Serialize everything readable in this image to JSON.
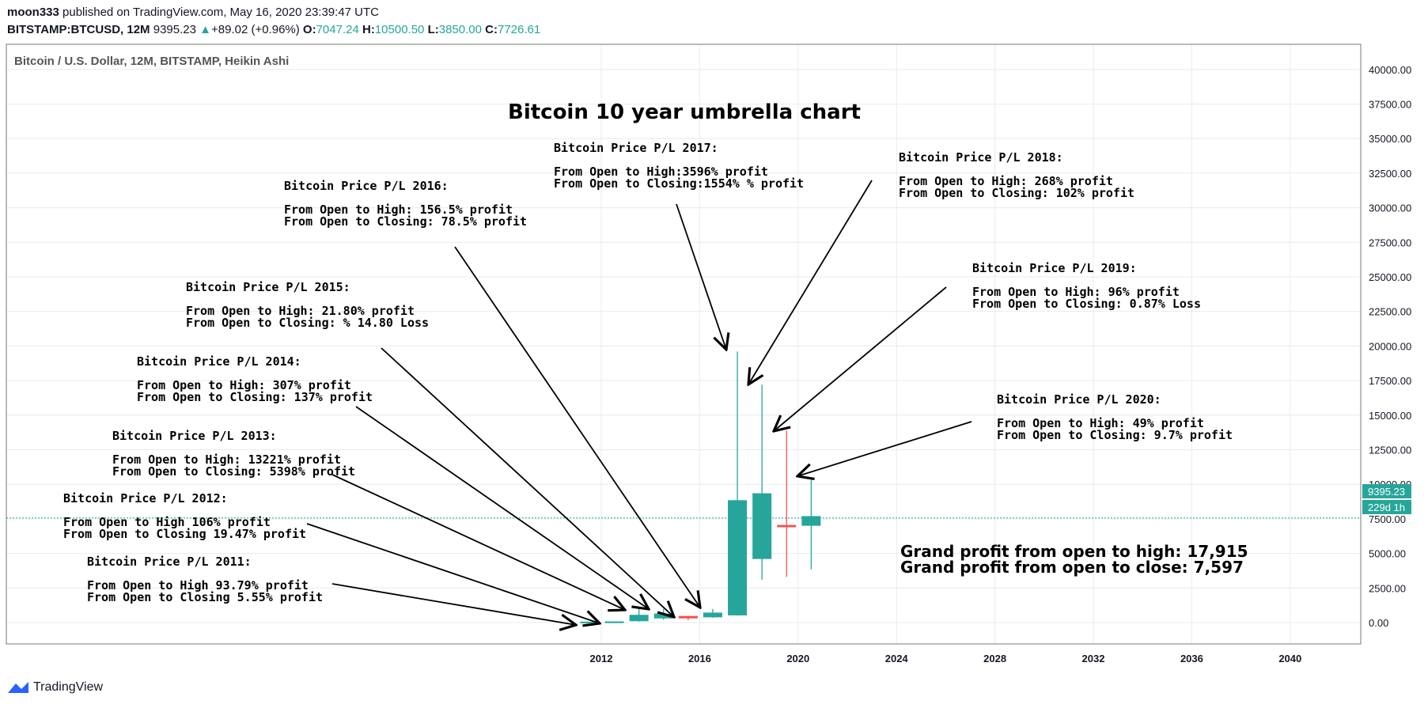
{
  "header": {
    "author": "moon333",
    "published_text": "published on TradingView.com, May 16, 2020 23:39:47 UTC",
    "symbol": "BITSTAMP:BTCUSD, 12M",
    "last": "9395.23",
    "change": "+89.02 (+0.96%)",
    "o_label": "O:",
    "o_value": "7047.24",
    "h_label": "H:",
    "h_value": "10500.50",
    "l_label": "L:",
    "l_value": "3850.00",
    "c_label": "C:",
    "c_value": "7726.61",
    "up_arrow": "▲"
  },
  "chart_title": "Bitcoin / U.S. Dollar, 12M, BITSTAMP, Heikin Ashi",
  "headline": "Bitcoin 10 year umbrella chart",
  "price_badge": "9395.23",
  "time_badge": "229d 1h",
  "grand": {
    "line1": "Grand profit from open to high: 17,915",
    "line2": "Grand profit from open to close: 7,597"
  },
  "annotations": [
    {
      "title": "Bitcoin Price P/L 2011:",
      "l1": "From Open to High 93.79% profit",
      "l2": "From Open to Closing 5.55% profit"
    },
    {
      "title": "Bitcoin Price P/L 2012:",
      "l1": "From Open to High 106% profit",
      "l2": "From Open to Closing 19.47% profit"
    },
    {
      "title": "Bitcoin Price P/L 2013:",
      "l1": "From Open to High: 13221% profit",
      "l2": "From Open to Closing: 5398% profit"
    },
    {
      "title": "Bitcoin Price P/L 2014:",
      "l1": "From Open to High: 307% profit",
      "l2": "From Open to Closing: 137% profit"
    },
    {
      "title": "Bitcoin Price P/L 2015:",
      "l1": "From Open to High: 21.80% profit",
      "l2": "From Open to Closing: % 14.80 Loss"
    },
    {
      "title": "Bitcoin Price P/L 2016:",
      "l1": "From Open to High: 156.5% profit",
      "l2": "From Open to Closing: 78.5%  profit"
    },
    {
      "title": "Bitcoin Price P/L 2017:",
      "l1": "From Open to High:3596%  profit",
      "l2": "From Open to Closing:1554% % profit"
    },
    {
      "title": "Bitcoin Price P/L 2018:",
      "l1": "From Open to High: 268% profit",
      "l2": "From Open to Closing: 102% profit"
    },
    {
      "title": "Bitcoin Price P/L 2019:",
      "l1": "From Open to High: 96% profit",
      "l2": "From Open to Closing: 0.87% Loss"
    },
    {
      "title": "Bitcoin Price P/L 2020:",
      "l1": "From Open to High: 49% profit",
      "l2": "From Open to Closing: 9.7% profit"
    }
  ],
  "footer": {
    "brand": "TradingView"
  },
  "colors": {
    "up": "#26a69a",
    "down": "#ef5350",
    "grid": "#e6ecf0",
    "priceLine": "#26a69a"
  },
  "chart_data": {
    "type": "candlestick",
    "title": "Bitcoin / U.S. Dollar, 12M, BITSTAMP, Heikin Ashi",
    "y_ticks": [
      0,
      2500,
      5000,
      7500,
      10000,
      12500,
      15000,
      17500,
      20000,
      22500,
      25000,
      27500,
      30000,
      32500,
      35000,
      37500,
      40000
    ],
    "y_tick_labels": [
      "0.00",
      "2500.00",
      "5000.00",
      "7500.00",
      "10000.00",
      "12500.00",
      "15000.00",
      "17500.00",
      "20000.00",
      "22500.00",
      "25000.00",
      "27500.00",
      "30000.00",
      "32500.00",
      "35000.00",
      "37500.00",
      "40000.00"
    ],
    "x_ticks": [
      2012,
      2016,
      2020,
      2024,
      2028,
      2032,
      2036,
      2040
    ],
    "x_tick_labels": [
      "2012",
      "2016",
      "2020",
      "2024",
      "2028",
      "2032",
      "2036",
      "2040"
    ],
    "ylim": [
      -1500,
      41500
    ],
    "last_price": 9395.23,
    "candles": [
      {
        "year": 2011,
        "open": 5,
        "high": 10,
        "low": 0,
        "close": 8,
        "dir": "up"
      },
      {
        "year": 2012,
        "open": 20,
        "high": 30,
        "low": 5,
        "close": 25,
        "dir": "up"
      },
      {
        "year": 2013,
        "open": 100,
        "high": 1160,
        "low": 70,
        "close": 560,
        "dir": "up"
      },
      {
        "year": 2014,
        "open": 300,
        "high": 1000,
        "low": 200,
        "close": 650,
        "dir": "up"
      },
      {
        "year": 2015,
        "open": 420,
        "high": 500,
        "low": 170,
        "close": 360,
        "dir": "down"
      },
      {
        "year": 2016,
        "open": 380,
        "high": 980,
        "low": 350,
        "close": 720,
        "dir": "up"
      },
      {
        "year": 2017,
        "open": 520,
        "high": 19600,
        "low": 500,
        "close": 8850,
        "dir": "up"
      },
      {
        "year": 2018,
        "open": 4600,
        "high": 17200,
        "low": 3100,
        "close": 9350,
        "dir": "up"
      },
      {
        "year": 2019,
        "open": 7000,
        "high": 13900,
        "low": 3300,
        "close": 6950,
        "dir": "down"
      },
      {
        "year": 2020,
        "open": 7000,
        "high": 10500,
        "low": 3850,
        "close": 7700,
        "dir": "up"
      }
    ]
  }
}
